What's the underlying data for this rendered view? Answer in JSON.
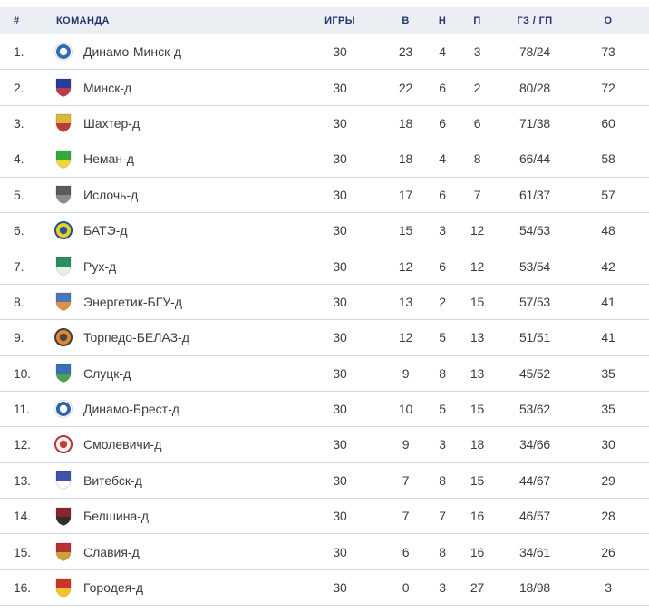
{
  "table": {
    "columns": [
      {
        "key": "rank",
        "label": "#"
      },
      {
        "key": "team",
        "label": "КОМАНДА"
      },
      {
        "key": "games",
        "label": "ИГРЫ"
      },
      {
        "key": "wins",
        "label": "В"
      },
      {
        "key": "draws",
        "label": "Н"
      },
      {
        "key": "losses",
        "label": "П"
      },
      {
        "key": "goals",
        "label": "ГЗ / ГП"
      },
      {
        "key": "points",
        "label": "О"
      }
    ],
    "rows": [
      {
        "rank": "1.",
        "team": "Динамо-Минск-д",
        "games": "30",
        "wins": "23",
        "draws": "4",
        "losses": "3",
        "goals": "78/24",
        "points": "73",
        "logo": {
          "type": "circle",
          "c1": "#2e6db4",
          "c2": "#ffffff"
        }
      },
      {
        "rank": "2.",
        "team": "Минск-д",
        "games": "30",
        "wins": "22",
        "draws": "6",
        "losses": "2",
        "goals": "80/28",
        "points": "72",
        "logo": {
          "type": "shield",
          "c1": "#24409a",
          "c2": "#c03a4b"
        }
      },
      {
        "rank": "3.",
        "team": "Шахтер-д",
        "games": "30",
        "wins": "18",
        "draws": "6",
        "losses": "6",
        "goals": "71/38",
        "points": "60",
        "logo": {
          "type": "shield",
          "c1": "#d9b93a",
          "c2": "#bf3b3b"
        }
      },
      {
        "rank": "4.",
        "team": "Неман-д",
        "games": "30",
        "wins": "18",
        "draws": "4",
        "losses": "8",
        "goals": "66/44",
        "points": "58",
        "logo": {
          "type": "shield",
          "c1": "#37a93c",
          "c2": "#efd73b"
        }
      },
      {
        "rank": "5.",
        "team": "Ислочь-д",
        "games": "30",
        "wins": "17",
        "draws": "6",
        "losses": "7",
        "goals": "61/37",
        "points": "57",
        "logo": {
          "type": "shield",
          "c1": "#5a5a5a",
          "c2": "#8c8c8c"
        }
      },
      {
        "rank": "6.",
        "team": "БАТЭ-д",
        "games": "30",
        "wins": "15",
        "draws": "3",
        "losses": "12",
        "goals": "54/53",
        "points": "48",
        "logo": {
          "type": "circle",
          "c1": "#efd019",
          "c2": "#2457a8"
        }
      },
      {
        "rank": "7.",
        "team": "Рух-д",
        "games": "30",
        "wins": "12",
        "draws": "6",
        "losses": "12",
        "goals": "53/54",
        "points": "42",
        "logo": {
          "type": "shield",
          "c1": "#2a8f5a",
          "c2": "#e8f0ea"
        }
      },
      {
        "rank": "8.",
        "team": "Энергетик-БГУ-д",
        "games": "30",
        "wins": "13",
        "draws": "2",
        "losses": "15",
        "goals": "57/53",
        "points": "41",
        "logo": {
          "type": "shield",
          "c1": "#4a77b8",
          "c2": "#e0913f"
        }
      },
      {
        "rank": "9.",
        "team": "Торпедо-БЕЛАЗ-д",
        "games": "30",
        "wins": "12",
        "draws": "5",
        "losses": "13",
        "goals": "51/51",
        "points": "41",
        "logo": {
          "type": "circle",
          "c1": "#e2862f",
          "c2": "#454545"
        }
      },
      {
        "rank": "10.",
        "team": "Слуцк-д",
        "games": "30",
        "wins": "9",
        "draws": "8",
        "losses": "13",
        "goals": "45/52",
        "points": "35",
        "logo": {
          "type": "shield",
          "c1": "#3a70b5",
          "c2": "#4aa34e"
        }
      },
      {
        "rank": "11.",
        "team": "Динамо-Брест-д",
        "games": "30",
        "wins": "10",
        "draws": "5",
        "losses": "15",
        "goals": "53/62",
        "points": "35",
        "logo": {
          "type": "circle",
          "c1": "#2f63ae",
          "c2": "#ffffff"
        }
      },
      {
        "rank": "12.",
        "team": "Смолевичи-д",
        "games": "30",
        "wins": "9",
        "draws": "3",
        "losses": "18",
        "goals": "34/66",
        "points": "30",
        "logo": {
          "type": "circle",
          "c1": "#f2f2f2",
          "c2": "#c23a3a"
        }
      },
      {
        "rank": "13.",
        "team": "Витебск-д",
        "games": "30",
        "wins": "7",
        "draws": "8",
        "losses": "15",
        "goals": "44/67",
        "points": "29",
        "logo": {
          "type": "shield",
          "c1": "#3b55a8",
          "c2": "#ffffff"
        }
      },
      {
        "rank": "14.",
        "team": "Белшина-д",
        "games": "30",
        "wins": "7",
        "draws": "7",
        "losses": "16",
        "goals": "46/57",
        "points": "28",
        "logo": {
          "type": "shield",
          "c1": "#8a2430",
          "c2": "#2f2f2f"
        }
      },
      {
        "rank": "15.",
        "team": "Славия-д",
        "games": "30",
        "wins": "6",
        "draws": "8",
        "losses": "16",
        "goals": "34/61",
        "points": "26",
        "logo": {
          "type": "shield",
          "c1": "#b8322f",
          "c2": "#caa23a"
        }
      },
      {
        "rank": "16.",
        "team": "Городея-д",
        "games": "30",
        "wins": "0",
        "draws": "3",
        "losses": "27",
        "goals": "18/98",
        "points": "3",
        "logo": {
          "type": "shield",
          "c1": "#ce3327",
          "c2": "#eec32f"
        }
      }
    ]
  },
  "colors": {
    "header_bg": "#ebeef2",
    "header_text": "#25356e",
    "row_text": "#3c3c3c",
    "divider": "#cfd9dd",
    "background": "#ffffff"
  }
}
